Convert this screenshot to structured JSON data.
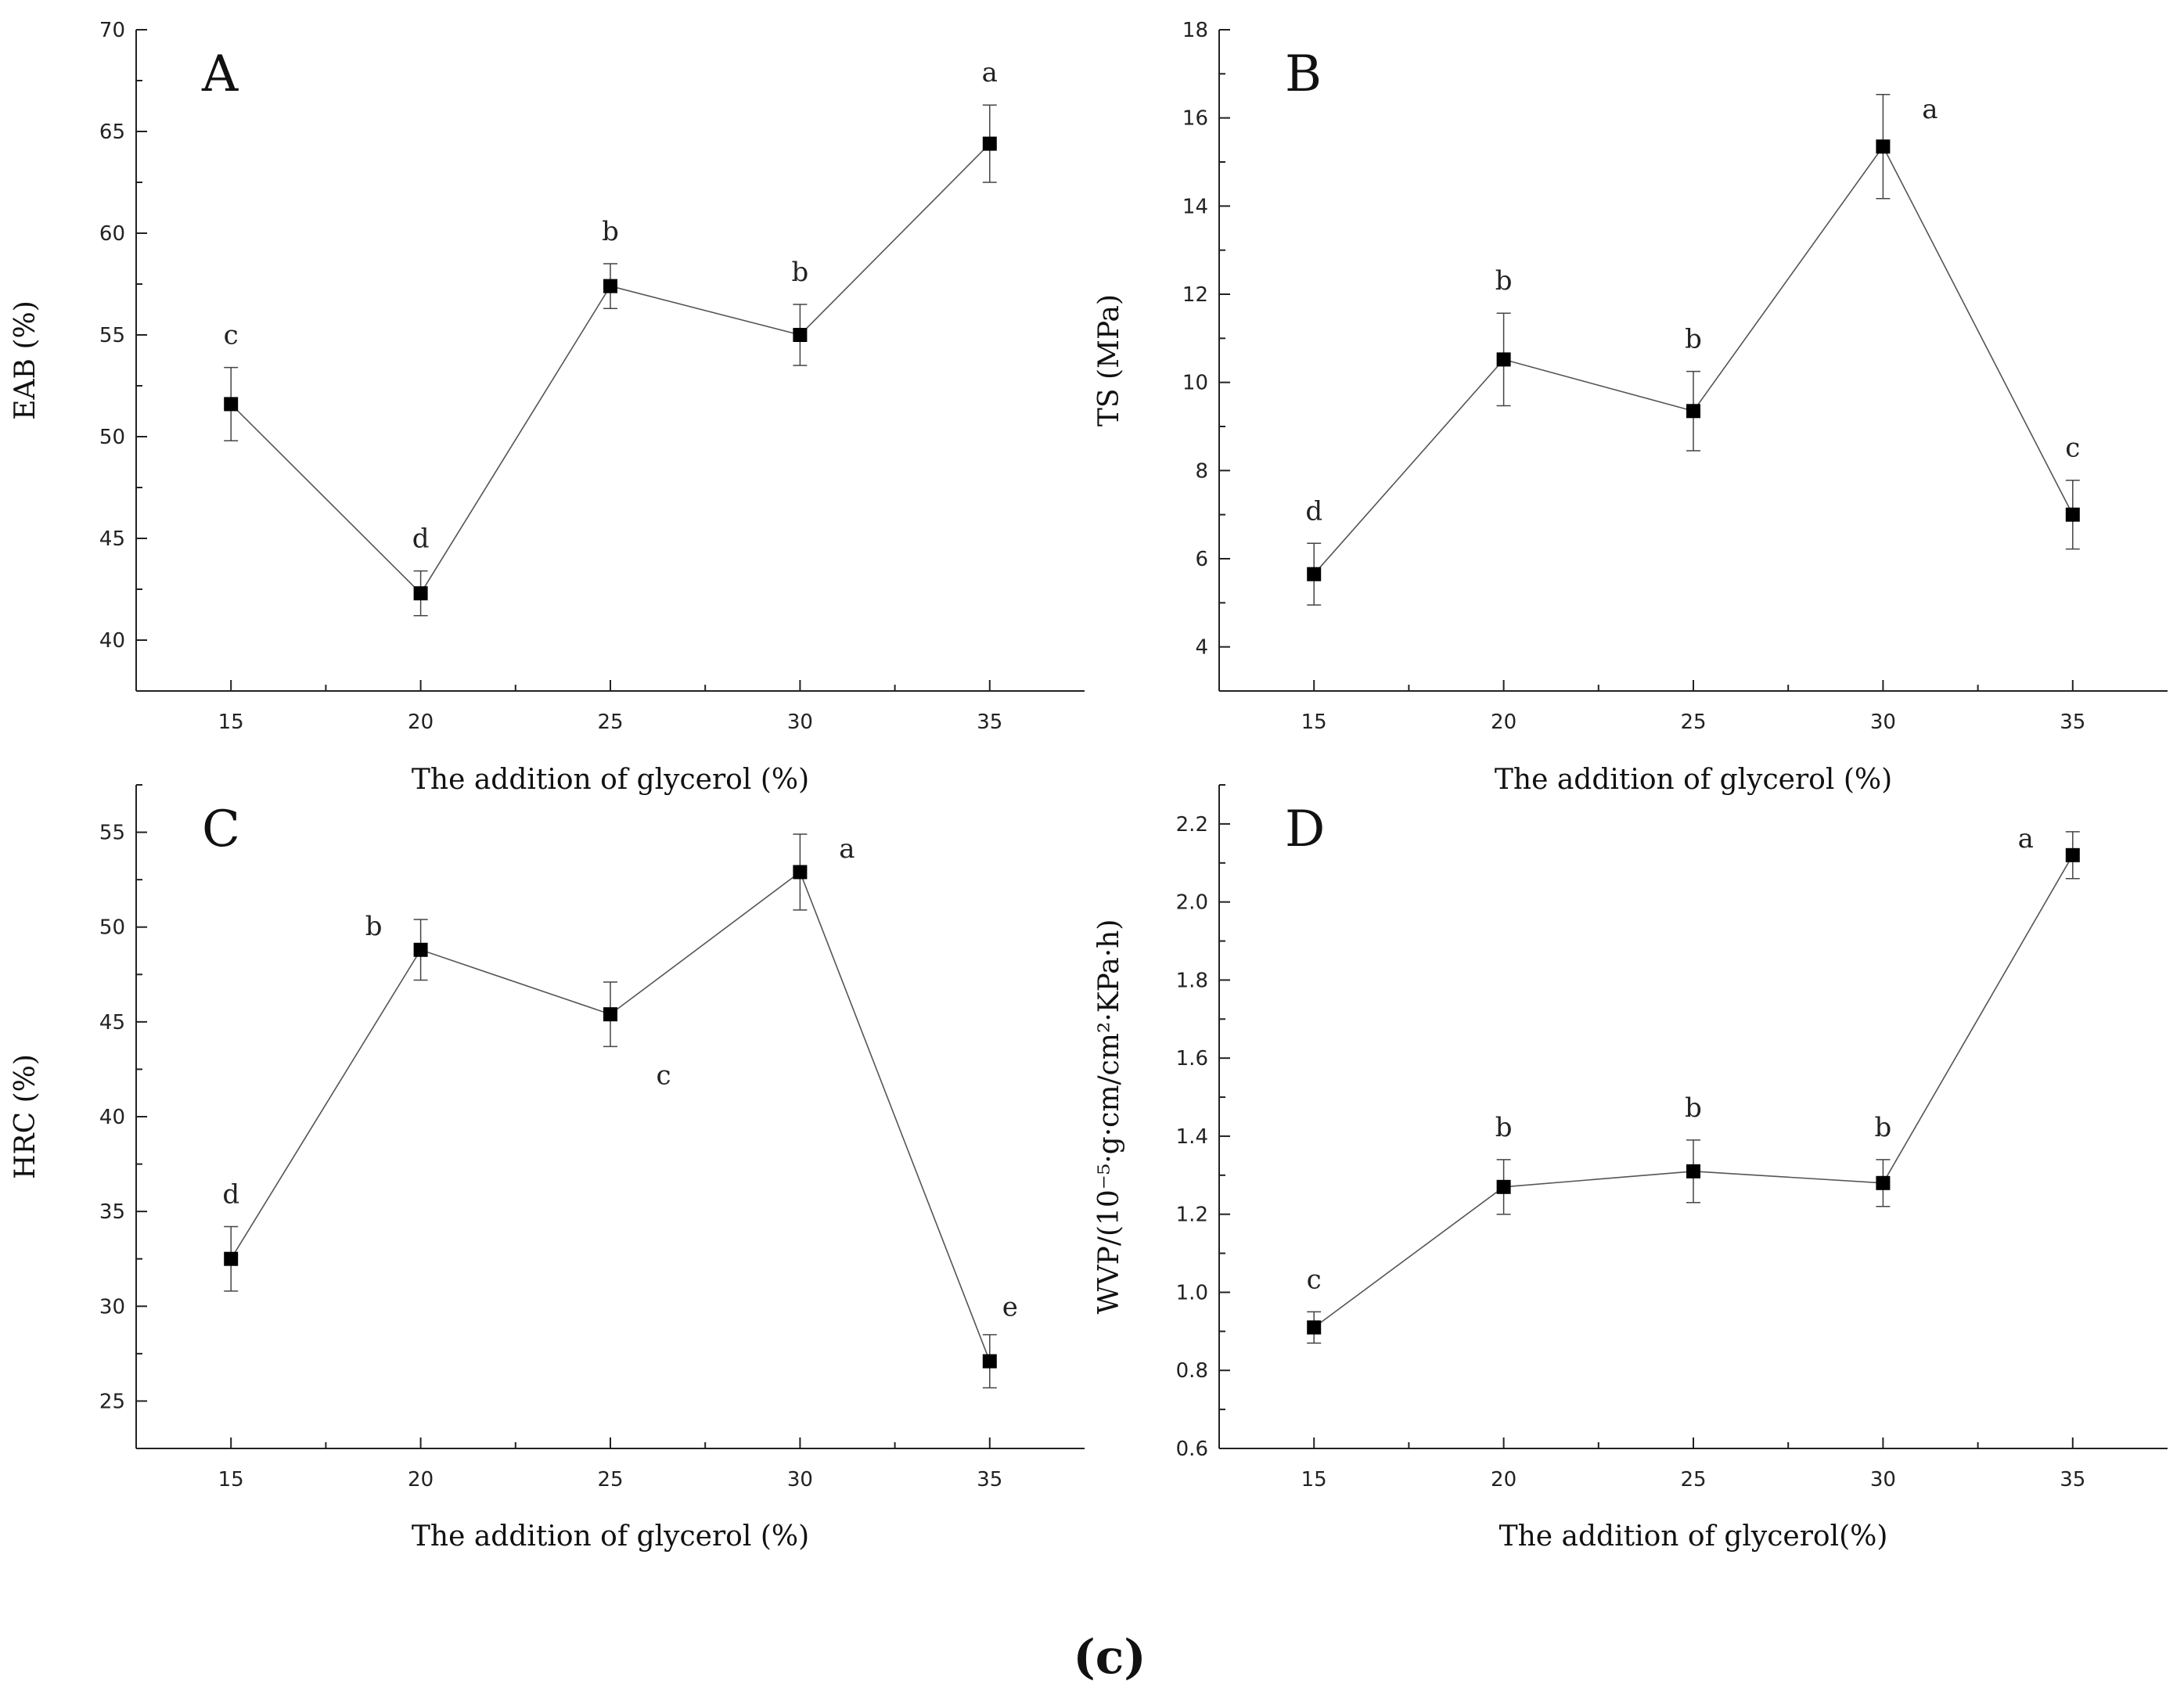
{
  "caption": "(c)",
  "chart_data": [
    {
      "type": "line",
      "panel": "A",
      "title": "",
      "xlabel": "The addition of glycerol (%)",
      "ylabel": "EAB (%)",
      "x": [
        15,
        20,
        25,
        30,
        35
      ],
      "xticks": [
        "15",
        "20",
        "25",
        "30",
        "35"
      ],
      "xlim": [
        12.5,
        37.5
      ],
      "ylim": [
        37.5,
        70
      ],
      "yticks": [
        40,
        45,
        50,
        55,
        60,
        65,
        70
      ],
      "ytick_labels": [
        "40",
        "45",
        "50",
        "55",
        "60",
        "65",
        "70"
      ],
      "series": [
        {
          "name": "EAB",
          "values": [
            51.6,
            42.3,
            57.4,
            55.0,
            64.4
          ],
          "errors": [
            1.8,
            1.1,
            1.1,
            1.5,
            1.9
          ]
        }
      ],
      "sig_labels": [
        "c",
        "d",
        "b",
        "b",
        "a"
      ],
      "sig_placement": [
        "above",
        "above",
        "above",
        "above",
        "above"
      ]
    },
    {
      "type": "line",
      "panel": "B",
      "title": "",
      "xlabel": "The addition of glycerol (%)",
      "ylabel": "TS (MPa)",
      "x": [
        15,
        20,
        25,
        30,
        35
      ],
      "xticks": [
        "15",
        "20",
        "25",
        "30",
        "35"
      ],
      "xlim": [
        12.5,
        37.5
      ],
      "ylim": [
        3,
        18
      ],
      "yticks": [
        4,
        6,
        8,
        10,
        12,
        14,
        16,
        18
      ],
      "ytick_labels": [
        "4",
        "6",
        "8",
        "10",
        "12",
        "14",
        "16",
        "18"
      ],
      "series": [
        {
          "name": "TS",
          "values": [
            5.65,
            10.52,
            9.35,
            15.35,
            7.0
          ],
          "errors": [
            0.7,
            1.05,
            0.9,
            1.18,
            0.78
          ]
        }
      ],
      "sig_labels": [
        "d",
        "b",
        "b",
        "a",
        "c"
      ],
      "sig_placement": [
        "above",
        "above",
        "above",
        "right",
        "above"
      ]
    },
    {
      "type": "line",
      "panel": "C",
      "title": "",
      "xlabel": "The addition of glycerol (%)",
      "ylabel": "HRC (%)",
      "x": [
        15,
        20,
        25,
        30,
        35
      ],
      "xticks": [
        "15",
        "20",
        "25",
        "30",
        "35"
      ],
      "xlim": [
        12.5,
        37.5
      ],
      "ylim": [
        22.5,
        57.5
      ],
      "yticks": [
        25,
        30,
        35,
        40,
        45,
        50,
        55
      ],
      "ytick_labels": [
        "25",
        "30",
        "35",
        "40",
        "45",
        "50",
        "55"
      ],
      "series": [
        {
          "name": "HRC",
          "values": [
            32.5,
            48.8,
            45.4,
            52.9,
            27.1
          ],
          "errors": [
            1.7,
            1.6,
            1.7,
            2.0,
            1.4
          ]
        }
      ],
      "sig_labels": [
        "d",
        "b",
        "c",
        "a",
        "e"
      ],
      "sig_placement": [
        "above",
        "left",
        "below-right",
        "right",
        "above-right"
      ]
    },
    {
      "type": "line",
      "panel": "D",
      "title": "",
      "xlabel": "The addition of glycerol(%)",
      "ylabel": "WVP/(10⁻⁵·g·cm/cm²·KPa·h)",
      "x": [
        15,
        20,
        25,
        30,
        35
      ],
      "xticks": [
        "15",
        "20",
        "25",
        "30",
        "35"
      ],
      "xlim": [
        12.5,
        37.5
      ],
      "ylim": [
        0.6,
        2.3
      ],
      "yticks": [
        0.6,
        0.8,
        1.0,
        1.2,
        1.4,
        1.6,
        1.8,
        2.0,
        2.2
      ],
      "ytick_labels": [
        "0.6",
        "0.8",
        "1.0",
        "1.2",
        "1.4",
        "1.6",
        "1.8",
        "2.0",
        "2.2"
      ],
      "series": [
        {
          "name": "WVP",
          "values": [
            0.91,
            1.27,
            1.31,
            1.28,
            2.12
          ],
          "errors": [
            0.04,
            0.07,
            0.08,
            0.06,
            0.06
          ]
        }
      ],
      "sig_labels": [
        "c",
        "b",
        "b",
        "b",
        "a"
      ],
      "sig_placement": [
        "above",
        "above",
        "above",
        "above",
        "left"
      ]
    }
  ]
}
